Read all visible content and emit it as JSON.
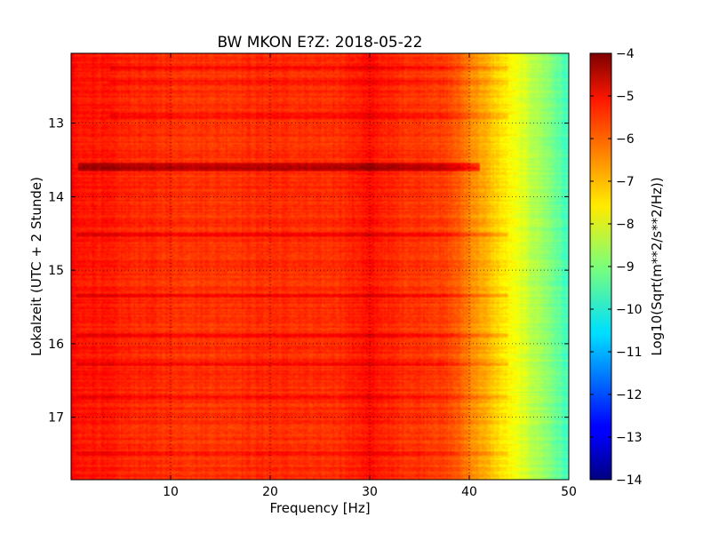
{
  "chart_data": {
    "type": "heatmap",
    "title": "BW MKON E?Z: 2018-05-22",
    "xlabel": "Frequency [Hz]",
    "ylabel": "Lokalzeit (UTC + 2 Stunde)",
    "xlim": [
      0,
      50
    ],
    "ylim": [
      12.05,
      17.85
    ],
    "y_inverted": true,
    "x_ticks": [
      10,
      20,
      30,
      40,
      50
    ],
    "x_tick_labels": [
      "10",
      "20",
      "30",
      "40",
      "50"
    ],
    "y_ticks": [
      13,
      14,
      15,
      16,
      17
    ],
    "y_tick_labels": [
      "13",
      "14",
      "15",
      "16",
      "17"
    ],
    "grid": true,
    "colormap": "jet",
    "colorbar": {
      "label": "Log10(Sqrt(m**2/s**2/Hz))",
      "range": [
        -14,
        -4
      ],
      "ticks": [
        -4,
        -5,
        -6,
        -7,
        -8,
        -9,
        -10,
        -11,
        -12,
        -13,
        -14
      ],
      "tick_labels": [
        "−4",
        "−5",
        "−6",
        "−7",
        "−8",
        "−9",
        "−10",
        "−11",
        "−12",
        "−13",
        "−14"
      ]
    },
    "spectral_profile": {
      "freq_hz": [
        0,
        1,
        2,
        5,
        10,
        15,
        20,
        25,
        28,
        30,
        31,
        33,
        36,
        38,
        39,
        40,
        41,
        42,
        43,
        44,
        45,
        46,
        47,
        48,
        49,
        50
      ],
      "log_amplitude": [
        -5.3,
        -5.5,
        -5.4,
        -5.6,
        -5.7,
        -5.75,
        -5.65,
        -5.75,
        -5.6,
        -5.4,
        -5.5,
        -5.7,
        -5.75,
        -5.95,
        -6.2,
        -6.5,
        -6.8,
        -7.1,
        -7.4,
        -7.7,
        -8.0,
        -8.3,
        -8.6,
        -8.9,
        -9.3,
        -9.7
      ]
    },
    "strong_bands": [
      {
        "time": 13.6,
        "log_amplitude_offset": 1.3,
        "freq_range": [
          0.8,
          41
        ]
      },
      {
        "time": 14.52,
        "log_amplitude_offset": 0.55,
        "freq_range": [
          0.5,
          44
        ]
      },
      {
        "time": 15.35,
        "log_amplitude_offset": 0.5,
        "freq_range": [
          0.5,
          44
        ]
      },
      {
        "time": 15.88,
        "log_amplitude_offset": 0.5,
        "freq_range": [
          0.5,
          44
        ]
      },
      {
        "time": 16.28,
        "log_amplitude_offset": 0.6,
        "freq_range": [
          0.5,
          44
        ]
      },
      {
        "time": 12.9,
        "log_amplitude_offset": 0.4,
        "freq_range": [
          4,
          44
        ]
      },
      {
        "time": 12.25,
        "log_amplitude_offset": 0.4,
        "freq_range": [
          4,
          44
        ]
      },
      {
        "time": 12.45,
        "log_amplitude_offset": 0.35,
        "freq_range": [
          4,
          44
        ]
      },
      {
        "time": 16.72,
        "log_amplitude_offset": 0.35,
        "freq_range": [
          0.5,
          44
        ]
      },
      {
        "time": 17.5,
        "log_amplitude_offset": 0.35,
        "freq_range": [
          0.5,
          44
        ]
      }
    ]
  }
}
